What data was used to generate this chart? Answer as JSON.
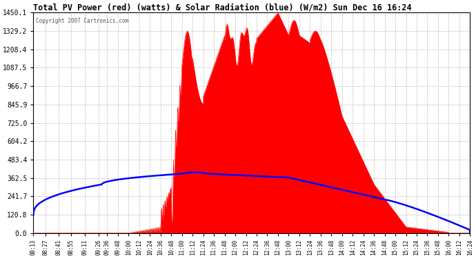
{
  "title": "Total PV Power (red) (watts) & Solar Radiation (blue) (W/m2) Sun Dec 16 16:24",
  "copyright": "Copyright 2007 Cartronics.com",
  "yticks": [
    0.0,
    120.8,
    241.7,
    362.5,
    483.4,
    604.2,
    725.0,
    845.9,
    966.7,
    1087.5,
    1208.4,
    1329.2,
    1450.1
  ],
  "ymax": 1450.1,
  "ymin": 0.0,
  "background_color": "#ffffff",
  "grid_color": "#aaaaaa",
  "title_color": "#000000",
  "red_color": "#ff0000",
  "blue_color": "#0000ff",
  "fig_width": 6.9,
  "fig_height": 3.75,
  "xtick_labels": [
    "08:13",
    "08:27",
    "08:41",
    "08:55",
    "09:11",
    "09:26",
    "09:36",
    "09:48",
    "10:00",
    "10:12",
    "10:24",
    "10:36",
    "10:48",
    "11:00",
    "11:12",
    "11:24",
    "11:36",
    "11:48",
    "12:00",
    "12:12",
    "12:24",
    "12:36",
    "12:48",
    "13:00",
    "13:12",
    "13:24",
    "13:36",
    "13:48",
    "14:00",
    "14:12",
    "14:24",
    "14:36",
    "14:48",
    "15:00",
    "15:12",
    "15:24",
    "15:36",
    "15:48",
    "16:00",
    "16:12",
    "16:24"
  ]
}
